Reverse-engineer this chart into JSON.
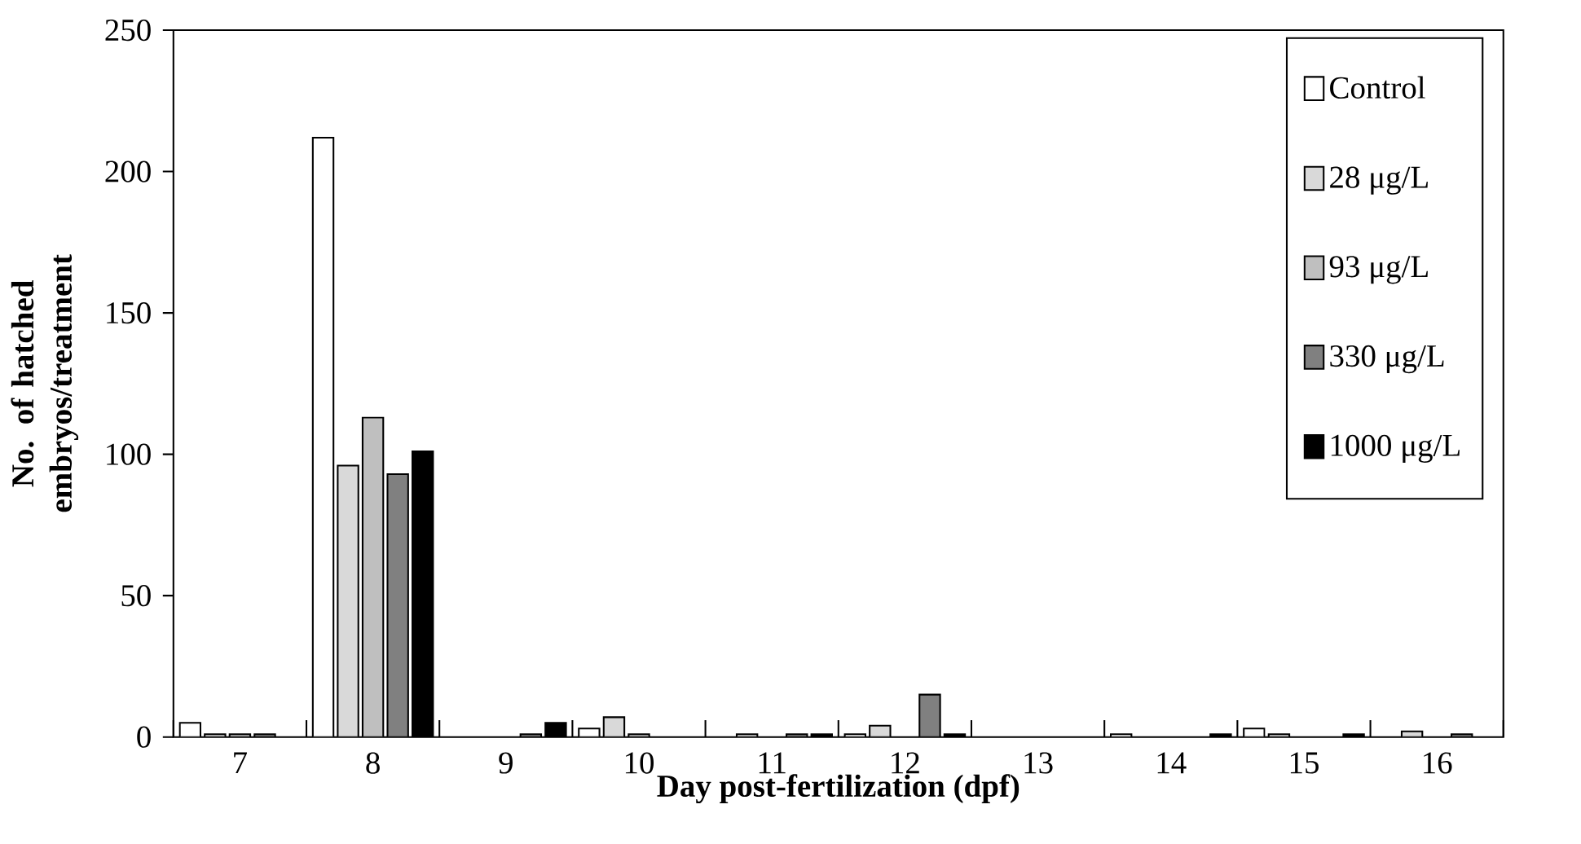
{
  "chart_data": {
    "type": "bar",
    "xlabel": "Day post-fertilization (dpf)",
    "ylabel": "No. of hatched embryos/treatment",
    "categories": [
      "7",
      "8",
      "9",
      "10",
      "11",
      "12",
      "13",
      "14",
      "15",
      "16"
    ],
    "series": [
      {
        "name": "Control",
        "color": "#ffffff",
        "values": [
          5,
          212,
          0,
          3,
          0,
          1,
          0,
          1,
          3,
          0
        ]
      },
      {
        "name": "28 μg/L",
        "color": "#d9d9d9",
        "values": [
          1,
          96,
          0,
          7,
          1,
          4,
          0,
          0,
          1,
          2
        ]
      },
      {
        "name": "93 μg/L",
        "color": "#bfbfbf",
        "values": [
          1,
          113,
          0,
          1,
          0,
          0,
          0,
          0,
          0,
          0
        ]
      },
      {
        "name": "330 μg/L",
        "color": "#808080",
        "values": [
          1,
          93,
          1,
          0,
          1,
          15,
          0,
          0,
          0,
          1
        ]
      },
      {
        "name": "1000 μg/L",
        "color": "#000000",
        "values": [
          0,
          101,
          5,
          0,
          1,
          1,
          0,
          1,
          1,
          0
        ]
      }
    ],
    "ylim": [
      0,
      250
    ],
    "yticks": [
      0,
      50,
      100,
      150,
      200,
      250
    ],
    "grid": false,
    "legend": "top right"
  }
}
